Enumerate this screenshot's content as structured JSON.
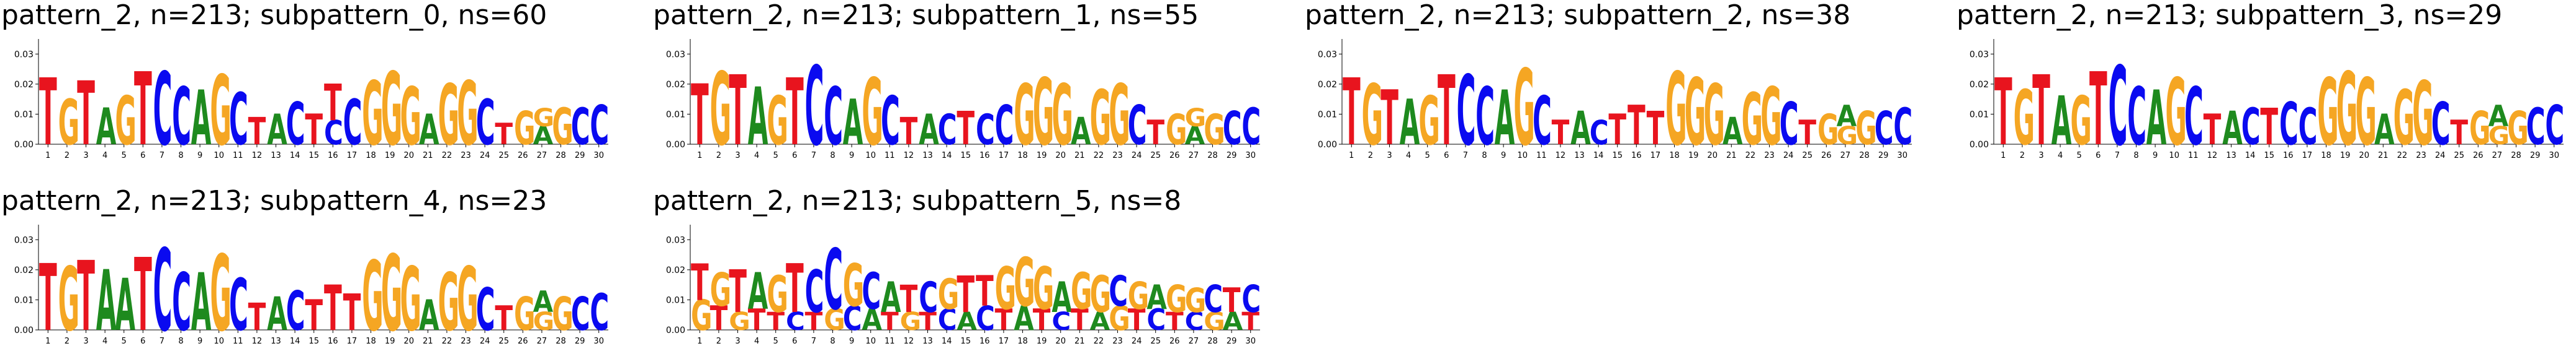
{
  "colors": {
    "A": "#1e8a1e",
    "C": "#0a0af0",
    "G": "#f5a623",
    "T": "#e8141e"
  },
  "chart_data": [
    {
      "type": "sequence-logo",
      "title": "pattern_2, n=213; subpattern_0, ns=60",
      "yticks": [
        "0.00",
        "0.01",
        "0.02",
        "0.03"
      ],
      "ylim": [
        0,
        0.035
      ],
      "x": [
        1,
        2,
        3,
        4,
        5,
        6,
        7,
        8,
        9,
        10,
        11,
        12,
        13,
        14,
        15,
        16,
        17,
        18,
        19,
        20,
        21,
        22,
        23,
        24,
        25,
        26,
        27,
        28,
        29,
        30
      ],
      "letters": [
        {
          "T": 0.022
        },
        {
          "G": 0.015
        },
        {
          "T": 0.021
        },
        {
          "A": 0.012
        },
        {
          "G": 0.016
        },
        {
          "T": 0.024
        },
        {
          "C": 0.024
        },
        {
          "C": 0.019
        },
        {
          "A": 0.018
        },
        {
          "G": 0.023
        },
        {
          "C": 0.017
        },
        {
          "T": 0.009
        },
        {
          "A": 0.01
        },
        {
          "C": 0.014
        },
        {
          "T": 0.01
        },
        {
          "T": 0.012,
          "C": 0.008
        },
        {
          "C": 0.015
        },
        {
          "G": 0.021
        },
        {
          "G": 0.024
        },
        {
          "G": 0.019
        },
        {
          "A": 0.01
        },
        {
          "G": 0.02
        },
        {
          "G": 0.021
        },
        {
          "C": 0.015
        },
        {
          "T": 0.007
        },
        {
          "G": 0.011
        },
        {
          "A": 0.006,
          "G": 0.006
        },
        {
          "G": 0.012
        },
        {
          "C": 0.012
        },
        {
          "C": 0.013
        }
      ]
    },
    {
      "type": "sequence-logo",
      "title": "pattern_2, n=213; subpattern_1, ns=55",
      "yticks": [
        "0.00",
        "0.01",
        "0.02",
        "0.03"
      ],
      "ylim": [
        0,
        0.035
      ],
      "x": [
        1,
        2,
        3,
        4,
        5,
        6,
        7,
        8,
        9,
        10,
        11,
        12,
        13,
        14,
        15,
        16,
        17,
        18,
        19,
        20,
        21,
        22,
        23,
        24,
        25,
        26,
        27,
        28,
        29,
        30
      ],
      "letters": [
        {
          "T": 0.02
        },
        {
          "G": 0.024
        },
        {
          "T": 0.023
        },
        {
          "A": 0.019
        },
        {
          "G": 0.016
        },
        {
          "T": 0.022
        },
        {
          "C": 0.026
        },
        {
          "C": 0.019
        },
        {
          "A": 0.015
        },
        {
          "G": 0.022
        },
        {
          "C": 0.016
        },
        {
          "T": 0.009
        },
        {
          "A": 0.01
        },
        {
          "C": 0.01
        },
        {
          "T": 0.011
        },
        {
          "I": 0.0,
          "C": 0.01
        },
        {
          "C": 0.013
        },
        {
          "G": 0.02
        },
        {
          "G": 0.022
        },
        {
          "G": 0.02
        },
        {
          "A": 0.009
        },
        {
          "G": 0.018
        },
        {
          "G": 0.02
        },
        {
          "C": 0.013
        },
        {
          "T": 0.008
        },
        {
          "G": 0.01
        },
        {
          "A": 0.006,
          "G": 0.006
        },
        {
          "G": 0.01
        },
        {
          "C": 0.011
        },
        {
          "C": 0.012
        }
      ]
    },
    {
      "type": "sequence-logo",
      "title": "pattern_2, n=213; subpattern_2, ns=38",
      "yticks": [
        "0.00",
        "0.01",
        "0.02",
        "0.03"
      ],
      "ylim": [
        0,
        0.035
      ],
      "x": [
        1,
        2,
        3,
        4,
        5,
        6,
        7,
        8,
        9,
        10,
        11,
        12,
        13,
        14,
        15,
        16,
        17,
        18,
        19,
        20,
        21,
        22,
        23,
        24,
        25,
        26,
        27,
        28,
        29,
        30
      ],
      "letters": [
        {
          "T": 0.022
        },
        {
          "G": 0.02
        },
        {
          "T": 0.018
        },
        {
          "A": 0.015
        },
        {
          "G": 0.016
        },
        {
          "T": 0.023
        },
        {
          "C": 0.023
        },
        {
          "C": 0.019
        },
        {
          "A": 0.018
        },
        {
          "G": 0.025
        },
        {
          "C": 0.016
        },
        {
          "T": 0.008
        },
        {
          "A": 0.011
        },
        {
          "C": 0.008
        },
        {
          "T": 0.01
        },
        {
          "T": 0.013
        },
        {
          "T": 0.011
        },
        {
          "G": 0.024
        },
        {
          "G": 0.022
        },
        {
          "G": 0.02
        },
        {
          "A": 0.009
        },
        {
          "G": 0.017
        },
        {
          "G": 0.019
        },
        {
          "C": 0.014
        },
        {
          "T": 0.008
        },
        {
          "G": 0.01
        },
        {
          "A": 0.007,
          "G": 0.006
        },
        {
          "G": 0.011
        },
        {
          "C": 0.011
        },
        {
          "C": 0.012
        }
      ]
    },
    {
      "type": "sequence-logo",
      "title": "pattern_2, n=213; subpattern_3, ns=29",
      "yticks": [
        "0.00",
        "0.01",
        "0.02",
        "0.03"
      ],
      "ylim": [
        0,
        0.035
      ],
      "x": [
        1,
        2,
        3,
        4,
        5,
        6,
        7,
        8,
        9,
        10,
        11,
        12,
        13,
        14,
        15,
        16,
        17,
        18,
        19,
        20,
        21,
        22,
        23,
        24,
        25,
        26,
        27,
        28,
        29,
        30
      ],
      "letters": [
        {
          "T": 0.022
        },
        {
          "G": 0.018
        },
        {
          "T": 0.023
        },
        {
          "A": 0.016
        },
        {
          "G": 0.016
        },
        {
          "T": 0.024
        },
        {
          "C": 0.026
        },
        {
          "C": 0.019
        },
        {
          "A": 0.018
        },
        {
          "G": 0.022
        },
        {
          "C": 0.019
        },
        {
          "T": 0.01
        },
        {
          "A": 0.011
        },
        {
          "C": 0.012
        },
        {
          "T": 0.012
        },
        {
          "C": 0.014
        },
        {
          "C": 0.012
        },
        {
          "G": 0.022
        },
        {
          "G": 0.024
        },
        {
          "G": 0.022
        },
        {
          "A": 0.01
        },
        {
          "G": 0.018
        },
        {
          "G": 0.021
        },
        {
          "C": 0.014
        },
        {
          "T": 0.008
        },
        {
          "G": 0.011
        },
        {
          "A": 0.007,
          "G": 0.006
        },
        {
          "G": 0.011
        },
        {
          "C": 0.012
        },
        {
          "C": 0.013
        }
      ]
    },
    {
      "type": "sequence-logo",
      "title": "pattern_2, n=213; subpattern_4, ns=23",
      "yticks": [
        "0.00",
        "0.01",
        "0.02",
        "0.03"
      ],
      "ylim": [
        0,
        0.035
      ],
      "x": [
        1,
        2,
        3,
        4,
        5,
        6,
        7,
        8,
        9,
        10,
        11,
        12,
        13,
        14,
        15,
        16,
        17,
        18,
        19,
        20,
        21,
        22,
        23,
        24,
        25,
        26,
        27,
        28,
        29,
        30
      ],
      "letters": [
        {
          "T": 0.022
        },
        {
          "G": 0.021
        },
        {
          "T": 0.023
        },
        {
          "A": 0.02
        },
        {
          "A": 0.017
        },
        {
          "T": 0.024
        },
        {
          "C": 0.027
        },
        {
          "C": 0.019
        },
        {
          "A": 0.019
        },
        {
          "G": 0.025
        },
        {
          "C": 0.017
        },
        {
          "T": 0.009
        },
        {
          "A": 0.011
        },
        {
          "C": 0.013
        },
        {
          "T": 0.01
        },
        {
          "T": 0.015
        },
        {
          "T": 0.012
        },
        {
          "G": 0.023
        },
        {
          "G": 0.025
        },
        {
          "G": 0.021
        },
        {
          "A": 0.01
        },
        {
          "G": 0.019
        },
        {
          "G": 0.021
        },
        {
          "C": 0.014
        },
        {
          "T": 0.008
        },
        {
          "G": 0.011
        },
        {
          "A": 0.007,
          "G": 0.006
        },
        {
          "G": 0.011
        },
        {
          "C": 0.011
        },
        {
          "C": 0.012
        }
      ]
    },
    {
      "type": "sequence-logo",
      "title": "pattern_2, n=213; subpattern_5, ns=8",
      "yticks": [
        "0.00",
        "0.01",
        "0.02",
        "0.03"
      ],
      "ylim": [
        0,
        0.035
      ],
      "x": [
        1,
        2,
        3,
        4,
        5,
        6,
        7,
        8,
        9,
        10,
        11,
        12,
        13,
        14,
        15,
        16,
        17,
        18,
        19,
        20,
        21,
        22,
        23,
        24,
        25,
        26,
        27,
        28,
        29,
        30
      ],
      "letters": [
        {
          "T": 0.012,
          "G": 0.01
        },
        {
          "G": 0.011,
          "T": 0.008
        },
        {
          "T": 0.014,
          "G": 0.006
        },
        {
          "A": 0.012,
          "T": 0.007
        },
        {
          "G": 0.012,
          "T": 0.006
        },
        {
          "T": 0.016,
          "C": 0.006
        },
        {
          "C": 0.014,
          "T": 0.006
        },
        {
          "C": 0.02,
          "G": 0.007
        },
        {
          "G": 0.014,
          "C": 0.008
        },
        {
          "C": 0.012,
          "A": 0.007
        },
        {
          "A": 0.01,
          "T": 0.006
        },
        {
          "T": 0.009,
          "G": 0.006
        },
        {
          "C": 0.01,
          "T": 0.006
        },
        {
          "G": 0.01,
          "C": 0.007
        },
        {
          "T": 0.012,
          "A": 0.006
        },
        {
          "T": 0.01,
          "C": 0.008
        },
        {
          "G": 0.014,
          "T": 0.007
        },
        {
          "G": 0.016,
          "A": 0.008
        },
        {
          "G": 0.014,
          "T": 0.007
        },
        {
          "A": 0.01,
          "C": 0.006
        },
        {
          "G": 0.012,
          "T": 0.007
        },
        {
          "G": 0.012,
          "A": 0.006
        },
        {
          "C": 0.01,
          "G": 0.008
        },
        {
          "G": 0.009,
          "T": 0.007
        },
        {
          "A": 0.008,
          "C": 0.007
        },
        {
          "G": 0.009,
          "T": 0.006
        },
        {
          "G": 0.008,
          "C": 0.006
        },
        {
          "C": 0.009,
          "G": 0.006
        },
        {
          "T": 0.008,
          "A": 0.006
        },
        {
          "C": 0.009,
          "T": 0.006
        }
      ]
    }
  ]
}
